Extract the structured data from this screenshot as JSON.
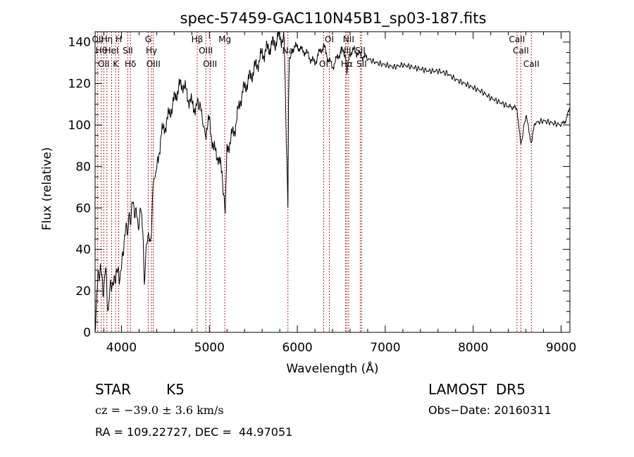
{
  "chart_data": {
    "type": "line",
    "title": "spec-57459-GAC110N45B1_sp03-187.fits",
    "xlabel": "Wavelength (Å)",
    "ylabel": "Flux (relative)",
    "xlim": [
      3700,
      9100
    ],
    "ylim": [
      0,
      145
    ],
    "xticks": [
      4000,
      5000,
      6000,
      7000,
      8000,
      9000
    ],
    "yticks": [
      0,
      20,
      40,
      60,
      80,
      100,
      120,
      140
    ],
    "grid": false,
    "legend": "none",
    "series": [
      {
        "color": "#000000",
        "x": [
          3700,
          3730,
          3760,
          3790,
          3820,
          3850,
          3880,
          3910,
          3940,
          3970,
          4000,
          4030,
          4060,
          4100,
          4130,
          4160,
          4190,
          4230,
          4260,
          4300,
          4330,
          4360,
          4400,
          4450,
          4500,
          4550,
          4600,
          4650,
          4700,
          4750,
          4800,
          4850,
          4880,
          4910,
          4950,
          5000,
          5050,
          5100,
          5150,
          5180,
          5200,
          5250,
          5300,
          5350,
          5400,
          5450,
          5500,
          5550,
          5600,
          5650,
          5700,
          5750,
          5800,
          5850,
          5893,
          5900,
          5910,
          5950,
          6000,
          6050,
          6100,
          6150,
          6200,
          6250,
          6300,
          6350,
          6400,
          6450,
          6500,
          6550,
          6563,
          6600,
          6650,
          6700,
          6750,
          6800,
          6900,
          7000,
          7100,
          7200,
          7300,
          7400,
          7500,
          7600,
          7700,
          7800,
          7900,
          8000,
          8100,
          8200,
          8300,
          8400,
          8498,
          8542,
          8600,
          8662,
          8700,
          8800,
          8900,
          9000,
          9050,
          9100
        ],
        "y": [
          2,
          25,
          32,
          20,
          30,
          10,
          25,
          22,
          30,
          27,
          30,
          45,
          50,
          55,
          62,
          58,
          52,
          60,
          25,
          50,
          40,
          72,
          78,
          95,
          100,
          106,
          112,
          118,
          120,
          114,
          110,
          108,
          112,
          105,
          96,
          102,
          88,
          85,
          75,
          56,
          88,
          94,
          100,
          112,
          118,
          122,
          126,
          130,
          134,
          136,
          138,
          140,
          143,
          140,
          62,
          110,
          132,
          137,
          138,
          136,
          135,
          132,
          130,
          135,
          138,
          132,
          128,
          132,
          136,
          134,
          125,
          135,
          136,
          134,
          133,
          132,
          130,
          129,
          128,
          129,
          128,
          127,
          126,
          126,
          125,
          122,
          120,
          118,
          116,
          113,
          111,
          109,
          108,
          90,
          105,
          91,
          101,
          102,
          101,
          100,
          102,
          108
        ]
      }
    ],
    "line_markers": [
      {
        "wl": 3730,
        "label": "OII"
      },
      {
        "wl": 3771,
        "label": "Hθ"
      },
      {
        "wl": 3798,
        "label": "OII"
      },
      {
        "wl": 3835,
        "label": "Hη"
      },
      {
        "wl": 3888,
        "label": "HeI"
      },
      {
        "wl": 3934,
        "label": "K"
      },
      {
        "wl": 3969,
        "label": "H"
      },
      {
        "wl": 4072,
        "label": "SII"
      },
      {
        "wl": 4102,
        "label": "Hδ"
      },
      {
        "wl": 4304,
        "label": "G"
      },
      {
        "wl": 4341,
        "label": "Hγ"
      },
      {
        "wl": 4363,
        "label": "OIII"
      },
      {
        "wl": 4861,
        "label": "Hβ"
      },
      {
        "wl": 4959,
        "label": "OIII"
      },
      {
        "wl": 5007,
        "label": "OIII"
      },
      {
        "wl": 5175,
        "label": "Mg"
      },
      {
        "wl": 5893,
        "label": "Na"
      },
      {
        "wl": 6300,
        "label": "OI"
      },
      {
        "wl": 6364,
        "label": "OI"
      },
      {
        "wl": 6548,
        "label": "NII"
      },
      {
        "wl": 6563,
        "label": "Hα"
      },
      {
        "wl": 6583,
        "label": "NII"
      },
      {
        "wl": 6716,
        "label": "SII"
      },
      {
        "wl": 6731,
        "label": "SII"
      },
      {
        "wl": 8498,
        "label": "CaII"
      },
      {
        "wl": 8542,
        "label": "CaII"
      },
      {
        "wl": 8662,
        "label": "CaII"
      }
    ],
    "line_marker_color": "#b22222"
  },
  "info": {
    "object_class": "STAR",
    "subclass": "K5",
    "survey": "LAMOST  DR5",
    "velocity": "cz = −39.0 ± 3.6 km/s",
    "obs_date": "Obs−Date: 20160311",
    "coords": "RA = 109.22727, DEC =  44.97051"
  }
}
